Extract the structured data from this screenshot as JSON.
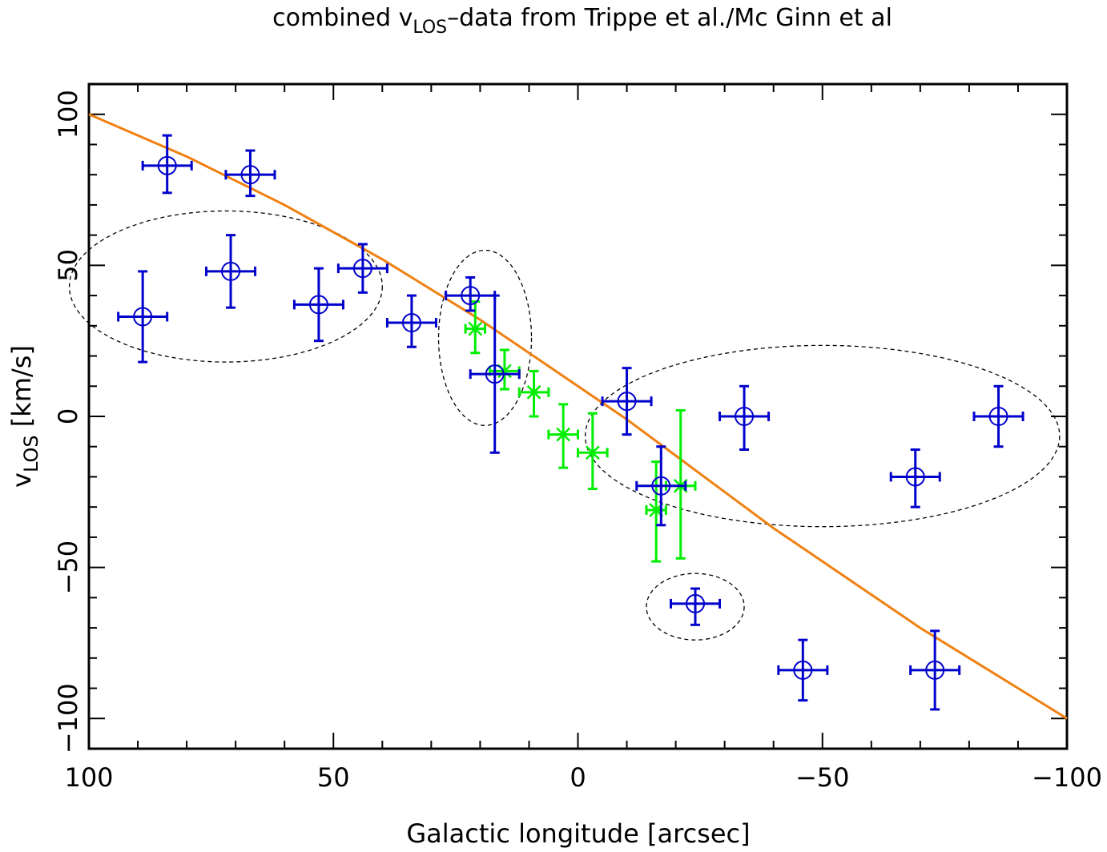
{
  "chart_data": {
    "type": "scatter",
    "title_main": "combined v",
    "title_sub": "LOS",
    "title_rest": "–data from Trippe et al./Mc Ginn et al",
    "xlabel": "Galactic longitude [arcsec]",
    "ylabel_main": "v",
    "ylabel_sub": "LOS",
    "ylabel_rest": " [km/s]",
    "xlim": [
      100,
      -100
    ],
    "ylim": [
      -110,
      110
    ],
    "x_ticks": [
      100,
      50,
      0,
      -50,
      -100
    ],
    "x_tick_labels": [
      "100",
      "50",
      "0",
      "−50",
      "−100"
    ],
    "y_ticks": [
      -100,
      -50,
      0,
      50,
      100
    ],
    "y_tick_labels": [
      "−100",
      "−50",
      "0",
      "50",
      "100"
    ],
    "colors": {
      "blue_series": "#0000cc",
      "green_series": "#00ee00",
      "model_curve": "#f08010",
      "ellipses": "#000000",
      "frame": "#000000"
    },
    "series_blue": {
      "marker": "open-circle",
      "points": [
        {
          "x": 89,
          "y": 33,
          "xerr": 5,
          "ylo": 18,
          "yhi": 48
        },
        {
          "x": 84,
          "y": 83,
          "xerr": 5,
          "ylo": 74,
          "yhi": 93
        },
        {
          "x": 71,
          "y": 48,
          "xerr": 5,
          "ylo": 36,
          "yhi": 60
        },
        {
          "x": 67,
          "y": 80,
          "xerr": 5,
          "ylo": 73,
          "yhi": 88
        },
        {
          "x": 53,
          "y": 37,
          "xerr": 5,
          "ylo": 25,
          "yhi": 49
        },
        {
          "x": 44,
          "y": 49,
          "xerr": 5,
          "ylo": 41,
          "yhi": 57
        },
        {
          "x": 34,
          "y": 31,
          "xerr": 5,
          "ylo": 23,
          "yhi": 40
        },
        {
          "x": 22,
          "y": 40,
          "xerr": 5,
          "ylo": 35,
          "yhi": 46
        },
        {
          "x": 17,
          "y": 14,
          "xerr": 5,
          "ylo": -12,
          "yhi": 40
        },
        {
          "x": -10,
          "y": 5,
          "xerr": 5,
          "ylo": -6,
          "yhi": 16
        },
        {
          "x": -17,
          "y": -23,
          "xerr": 5,
          "ylo": -36,
          "yhi": -10
        },
        {
          "x": -24,
          "y": -62,
          "xerr": 5,
          "ylo": -69,
          "yhi": -57
        },
        {
          "x": -34,
          "y": 0,
          "xerr": 5,
          "ylo": -11,
          "yhi": 10
        },
        {
          "x": -46,
          "y": -84,
          "xerr": 5,
          "ylo": -94,
          "yhi": -74
        },
        {
          "x": -69,
          "y": -20,
          "xerr": 5,
          "ylo": -30,
          "yhi": -11
        },
        {
          "x": -73,
          "y": -84,
          "xerr": 5,
          "ylo": -97,
          "yhi": -71
        },
        {
          "x": -86,
          "y": 0,
          "xerr": 5,
          "ylo": -10,
          "yhi": 10
        }
      ]
    },
    "series_green": {
      "marker": "asterisk",
      "points": [
        {
          "x": 21,
          "y": 29,
          "xerr": 2,
          "ylo": 21,
          "yhi": 38
        },
        {
          "x": 15,
          "y": 15,
          "xerr": 3,
          "ylo": 9,
          "yhi": 22
        },
        {
          "x": 9,
          "y": 8,
          "xerr": 3,
          "ylo": 0,
          "yhi": 15
        },
        {
          "x": 3,
          "y": -6,
          "xerr": 3,
          "ylo": -17,
          "yhi": 4
        },
        {
          "x": -3,
          "y": -12,
          "xerr": 3,
          "ylo": -24,
          "yhi": 1
        },
        {
          "x": -16,
          "y": -31,
          "xerr": 2,
          "ylo": -48,
          "yhi": -15
        },
        {
          "x": -21,
          "y": -23,
          "xerr": 3,
          "ylo": -47,
          "yhi": 2
        }
      ]
    },
    "model_curve": {
      "x": [
        100,
        90,
        80,
        70,
        60,
        50,
        40,
        30,
        20,
        10,
        0,
        -10,
        -20,
        -30,
        -40,
        -50,
        -60,
        -70,
        -80,
        -90,
        -100
      ],
      "y": [
        100,
        93,
        86,
        78,
        70,
        61,
        52,
        42,
        32,
        21,
        10,
        -1,
        -13,
        -25,
        -37,
        -48,
        -59,
        -70,
        -80,
        -90,
        -100
      ]
    },
    "ellipses": [
      {
        "cx": 72,
        "cy": 43,
        "rx": 32,
        "ry": 25
      },
      {
        "cx": 19,
        "cy": 26,
        "rx": 9.5,
        "ry": 29
      },
      {
        "cx": -50,
        "cy": -6.5,
        "rx": 48.5,
        "ry": 30
      },
      {
        "cx": -24,
        "cy": -63,
        "rx": 10,
        "ry": 11
      }
    ]
  }
}
